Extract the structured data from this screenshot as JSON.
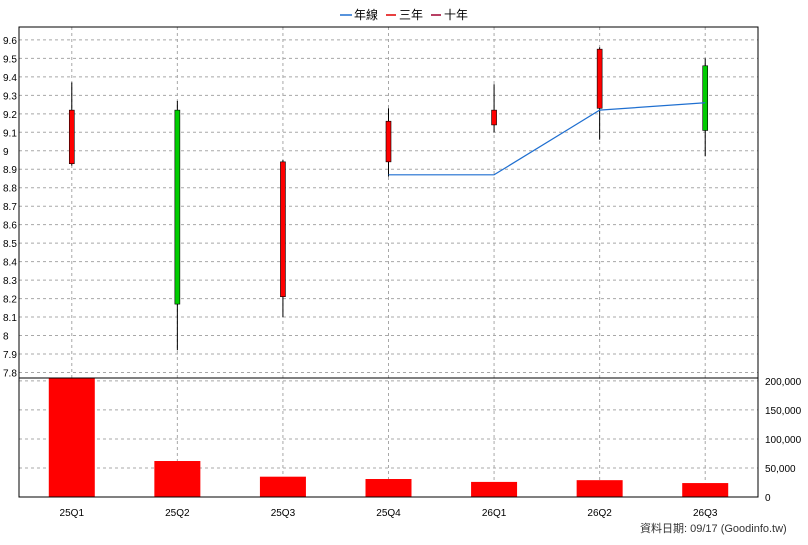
{
  "legend": [
    {
      "label": "年線",
      "color": "#1f6fd0"
    },
    {
      "label": "三年",
      "color": "#e00000"
    },
    {
      "label": "十年",
      "color": "#a00030"
    }
  ],
  "credit": "資料日期: 09/17  (Goodinfo.tw)",
  "colors": {
    "up": "#ff0000",
    "down": "#00cc00",
    "volume": "#ff0000",
    "line": "#1f6fd0"
  },
  "chart_data": {
    "type": "candlestick",
    "categories": [
      "25Q1",
      "25Q2",
      "25Q3",
      "25Q4",
      "26Q1",
      "26Q2",
      "26Q3"
    ],
    "price_axis": {
      "ylim": [
        7.77,
        9.67
      ],
      "ticks": [
        "9.6",
        "9.5",
        "9.4",
        "9.3",
        "9.2",
        "9.1",
        "9",
        "8.9",
        "8.8",
        "8.7",
        "8.6",
        "8.5",
        "8.4",
        "8.3",
        "8.2",
        "8.1",
        "8",
        "7.9",
        "7.8"
      ]
    },
    "candles": [
      {
        "open": 8.93,
        "close": 9.22,
        "high": 9.37,
        "low": 8.92,
        "color": "red"
      },
      {
        "open": 9.22,
        "close": 8.17,
        "high": 9.27,
        "low": 7.92,
        "color": "green"
      },
      {
        "open": 8.21,
        "close": 8.94,
        "high": 8.95,
        "low": 8.1,
        "color": "red"
      },
      {
        "open": 8.94,
        "close": 9.16,
        "high": 9.23,
        "low": 8.86,
        "color": "red"
      },
      {
        "open": 9.14,
        "close": 9.22,
        "high": 9.36,
        "low": 9.1,
        "color": "red"
      },
      {
        "open": 9.23,
        "close": 9.55,
        "high": 9.56,
        "low": 9.06,
        "color": "red"
      },
      {
        "open": 9.46,
        "close": 9.11,
        "high": 9.5,
        "low": 8.97,
        "color": "green"
      }
    ],
    "line_series": {
      "name": "年線",
      "start_index": 3,
      "values": [
        8.87,
        8.87,
        9.22,
        9.26
      ]
    },
    "volume_axis": {
      "ylim": [
        0,
        205000
      ],
      "ticks": [
        "200,000",
        "150,000",
        "100,000",
        "50,000",
        "0"
      ],
      "tick_values": [
        200000,
        150000,
        100000,
        50000,
        0
      ]
    },
    "volume": [
      205000,
      62000,
      35000,
      31000,
      26000,
      29000,
      24000
    ]
  }
}
